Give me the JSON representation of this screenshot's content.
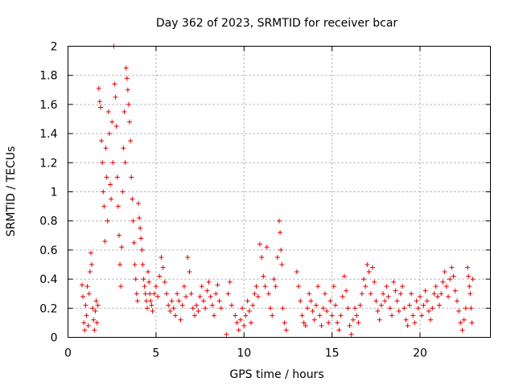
{
  "chart_data": {
    "type": "scatter",
    "title": "Day 362 of 2023, SRMTID for receiver bcar",
    "xlabel": "GPS time / hours",
    "ylabel": "SRMTID / TECUs",
    "xlim": [
      0,
      24
    ],
    "ylim": [
      0,
      2
    ],
    "xticks": [
      0,
      5,
      10,
      15,
      20
    ],
    "yticks": [
      0,
      0.2,
      0.4,
      0.6,
      0.8,
      1,
      1.2,
      1.4,
      1.6,
      1.8,
      2
    ],
    "ytick_labels": [
      "0",
      "0.2",
      "0.4",
      "0.6",
      "0.8",
      "1",
      "1.2",
      "1.4",
      "1.6",
      "1.8",
      "2"
    ],
    "grid": true,
    "marker": "+",
    "color": "#e00000",
    "series": [
      {
        "name": "bcar",
        "points": [
          [
            0.8,
            0.36
          ],
          [
            0.85,
            0.28
          ],
          [
            0.9,
            0.1
          ],
          [
            0.95,
            0.05
          ],
          [
            1.0,
            0.22
          ],
          [
            1.05,
            0.15
          ],
          [
            1.1,
            0.35
          ],
          [
            1.15,
            0.08
          ],
          [
            1.2,
            0.3
          ],
          [
            1.25,
            0.45
          ],
          [
            1.3,
            0.58
          ],
          [
            1.35,
            0.5
          ],
          [
            1.4,
            0.2
          ],
          [
            1.45,
            0.12
          ],
          [
            1.5,
            0.05
          ],
          [
            1.55,
            0.18
          ],
          [
            1.6,
            0.25
          ],
          [
            1.65,
            0.1
          ],
          [
            1.7,
            0.22
          ],
          [
            1.75,
            1.71
          ],
          [
            1.8,
            1.62
          ],
          [
            1.85,
            1.58
          ],
          [
            1.9,
            1.35
          ],
          [
            1.95,
            1.2
          ],
          [
            2.0,
            1.0
          ],
          [
            2.05,
            0.9
          ],
          [
            2.1,
            0.66
          ],
          [
            2.15,
            1.3
          ],
          [
            2.2,
            1.1
          ],
          [
            2.25,
            0.8
          ],
          [
            2.3,
            1.55
          ],
          [
            2.35,
            1.4
          ],
          [
            2.4,
            1.05
          ],
          [
            2.45,
            0.95
          ],
          [
            2.5,
            1.48
          ],
          [
            2.55,
            1.2
          ],
          [
            2.6,
            2.0
          ],
          [
            2.65,
            1.74
          ],
          [
            2.7,
            1.65
          ],
          [
            2.75,
            1.45
          ],
          [
            2.8,
            1.1
          ],
          [
            2.85,
            0.9
          ],
          [
            2.9,
            0.7
          ],
          [
            2.95,
            0.5
          ],
          [
            3.0,
            0.35
          ],
          [
            3.05,
            0.62
          ],
          [
            3.1,
            1.0
          ],
          [
            3.15,
            1.3
          ],
          [
            3.2,
            1.55
          ],
          [
            3.25,
            1.2
          ],
          [
            3.3,
            1.85
          ],
          [
            3.35,
            1.78
          ],
          [
            3.4,
            1.7
          ],
          [
            3.45,
            1.6
          ],
          [
            3.5,
            1.48
          ],
          [
            3.55,
            1.35
          ],
          [
            3.6,
            1.1
          ],
          [
            3.65,
            0.95
          ],
          [
            3.7,
            0.8
          ],
          [
            3.75,
            0.65
          ],
          [
            3.8,
            0.5
          ],
          [
            3.85,
            0.4
          ],
          [
            3.9,
            0.3
          ],
          [
            3.95,
            0.25
          ],
          [
            4.0,
            0.92
          ],
          [
            4.05,
            0.82
          ],
          [
            4.1,
            0.75
          ],
          [
            4.15,
            0.68
          ],
          [
            4.2,
            0.6
          ],
          [
            4.25,
            0.5
          ],
          [
            4.3,
            0.4
          ],
          [
            4.35,
            0.35
          ],
          [
            4.4,
            0.3
          ],
          [
            4.45,
            0.25
          ],
          [
            4.5,
            0.2
          ],
          [
            4.55,
            0.45
          ],
          [
            4.6,
            0.38
          ],
          [
            4.65,
            0.3
          ],
          [
            4.7,
            0.25
          ],
          [
            4.75,
            0.22
          ],
          [
            4.8,
            0.18
          ],
          [
            4.9,
            0.3
          ],
          [
            5.0,
            0.35
          ],
          [
            5.1,
            0.28
          ],
          [
            5.2,
            0.42
          ],
          [
            5.3,
            0.55
          ],
          [
            5.4,
            0.48
          ],
          [
            5.5,
            0.38
          ],
          [
            5.6,
            0.3
          ],
          [
            5.7,
            0.22
          ],
          [
            5.8,
            0.18
          ],
          [
            5.9,
            0.25
          ],
          [
            6.0,
            0.2
          ],
          [
            6.1,
            0.15
          ],
          [
            6.2,
            0.3
          ],
          [
            6.3,
            0.25
          ],
          [
            6.4,
            0.12
          ],
          [
            6.5,
            0.22
          ],
          [
            6.6,
            0.35
          ],
          [
            6.7,
            0.28
          ],
          [
            6.8,
            0.55
          ],
          [
            6.9,
            0.45
          ],
          [
            7.0,
            0.3
          ],
          [
            7.1,
            0.2
          ],
          [
            7.2,
            0.15
          ],
          [
            7.3,
            0.22
          ],
          [
            7.4,
            0.18
          ],
          [
            7.5,
            0.28
          ],
          [
            7.6,
            0.35
          ],
          [
            7.7,
            0.25
          ],
          [
            7.8,
            0.2
          ],
          [
            7.9,
            0.32
          ],
          [
            8.0,
            0.38
          ],
          [
            8.1,
            0.28
          ],
          [
            8.2,
            0.22
          ],
          [
            8.3,
            0.15
          ],
          [
            8.4,
            0.3
          ],
          [
            8.5,
            0.36
          ],
          [
            8.6,
            0.25
          ],
          [
            8.7,
            0.2
          ],
          [
            9.0,
            0.02
          ],
          [
            9.1,
            0.3
          ],
          [
            9.2,
            0.38
          ],
          [
            9.3,
            0.22
          ],
          [
            9.5,
            0.15
          ],
          [
            9.6,
            0.1
          ],
          [
            9.7,
            0.05
          ],
          [
            9.8,
            0.12
          ],
          [
            9.9,
            0.2
          ],
          [
            10.0,
            0.08
          ],
          [
            10.1,
            0.15
          ],
          [
            10.2,
            0.25
          ],
          [
            10.3,
            0.18
          ],
          [
            10.4,
            0.1
          ],
          [
            10.5,
            0.22
          ],
          [
            10.6,
            0.3
          ],
          [
            10.7,
            0.35
          ],
          [
            10.8,
            0.28
          ],
          [
            10.9,
            0.64
          ],
          [
            11.0,
            0.55
          ],
          [
            11.1,
            0.42
          ],
          [
            11.2,
            0.35
          ],
          [
            11.3,
            0.62
          ],
          [
            11.4,
            0.3
          ],
          [
            11.5,
            0.2
          ],
          [
            11.6,
            0.15
          ],
          [
            11.7,
            0.4
          ],
          [
            11.8,
            0.35
          ],
          [
            11.9,
            0.55
          ],
          [
            12.0,
            0.8
          ],
          [
            12.05,
            0.72
          ],
          [
            12.1,
            0.6
          ],
          [
            12.15,
            0.5
          ],
          [
            12.2,
            0.2
          ],
          [
            12.3,
            0.1
          ],
          [
            12.4,
            0.05
          ],
          [
            13.0,
            0.45
          ],
          [
            13.1,
            0.35
          ],
          [
            13.2,
            0.25
          ],
          [
            13.3,
            0.15
          ],
          [
            13.4,
            0.1
          ],
          [
            13.5,
            0.08
          ],
          [
            13.6,
            0.2
          ],
          [
            13.7,
            0.3
          ],
          [
            13.8,
            0.25
          ],
          [
            13.9,
            0.18
          ],
          [
            14.0,
            0.12
          ],
          [
            14.1,
            0.22
          ],
          [
            14.2,
            0.35
          ],
          [
            14.3,
            0.15
          ],
          [
            14.4,
            0.08
          ],
          [
            14.5,
            0.2
          ],
          [
            14.6,
            0.3
          ],
          [
            14.7,
            0.18
          ],
          [
            14.8,
            0.1
          ],
          [
            14.9,
            0.25
          ],
          [
            15.0,
            0.15
          ],
          [
            15.1,
            0.35
          ],
          [
            15.2,
            0.22
          ],
          [
            15.3,
            0.1
          ],
          [
            15.4,
            0.05
          ],
          [
            15.5,
            0.15
          ],
          [
            15.6,
            0.28
          ],
          [
            15.7,
            0.42
          ],
          [
            15.8,
            0.32
          ],
          [
            15.9,
            0.2
          ],
          [
            16.0,
            0.08
          ],
          [
            16.1,
            0.02
          ],
          [
            16.2,
            0.12
          ],
          [
            16.3,
            0.2
          ],
          [
            16.4,
            0.15
          ],
          [
            16.5,
            0.1
          ],
          [
            16.6,
            0.22
          ],
          [
            16.7,
            0.3
          ],
          [
            16.8,
            0.4
          ],
          [
            16.9,
            0.35
          ],
          [
            17.0,
            0.5
          ],
          [
            17.1,
            0.45
          ],
          [
            17.2,
            0.3
          ],
          [
            17.3,
            0.48
          ],
          [
            17.4,
            0.38
          ],
          [
            17.5,
            0.25
          ],
          [
            17.6,
            0.18
          ],
          [
            17.7,
            0.12
          ],
          [
            17.8,
            0.22
          ],
          [
            17.9,
            0.3
          ],
          [
            18.0,
            0.25
          ],
          [
            18.1,
            0.35
          ],
          [
            18.2,
            0.28
          ],
          [
            18.3,
            0.2
          ],
          [
            18.4,
            0.15
          ],
          [
            18.5,
            0.38
          ],
          [
            18.6,
            0.32
          ],
          [
            18.7,
            0.25
          ],
          [
            18.8,
            0.18
          ],
          [
            18.9,
            0.3
          ],
          [
            19.0,
            0.35
          ],
          [
            19.1,
            0.2
          ],
          [
            19.2,
            0.12
          ],
          [
            19.3,
            0.08
          ],
          [
            19.4,
            0.22
          ],
          [
            19.5,
            0.3
          ],
          [
            19.6,
            0.15
          ],
          [
            19.7,
            0.1
          ],
          [
            19.8,
            0.25
          ],
          [
            19.9,
            0.2
          ],
          [
            20.0,
            0.28
          ],
          [
            20.1,
            0.15
          ],
          [
            20.2,
            0.22
          ],
          [
            20.3,
            0.32
          ],
          [
            20.4,
            0.25
          ],
          [
            20.5,
            0.18
          ],
          [
            20.6,
            0.12
          ],
          [
            20.7,
            0.2
          ],
          [
            20.8,
            0.3
          ],
          [
            20.9,
            0.35
          ],
          [
            21.0,
            0.28
          ],
          [
            21.1,
            0.22
          ],
          [
            21.2,
            0.3
          ],
          [
            21.3,
            0.38
          ],
          [
            21.4,
            0.45
          ],
          [
            21.5,
            0.35
          ],
          [
            21.6,
            0.28
          ],
          [
            21.7,
            0.4
          ],
          [
            21.8,
            0.48
          ],
          [
            21.9,
            0.42
          ],
          [
            22.0,
            0.32
          ],
          [
            22.1,
            0.25
          ],
          [
            22.2,
            0.18
          ],
          [
            22.3,
            0.1
          ],
          [
            22.4,
            0.05
          ],
          [
            22.5,
            0.12
          ],
          [
            22.6,
            0.2
          ],
          [
            22.7,
            0.48
          ],
          [
            22.75,
            0.42
          ],
          [
            22.8,
            0.35
          ],
          [
            22.85,
            0.3
          ],
          [
            22.9,
            0.2
          ],
          [
            22.95,
            0.1
          ],
          [
            23.0,
            0.4
          ]
        ]
      }
    ]
  }
}
